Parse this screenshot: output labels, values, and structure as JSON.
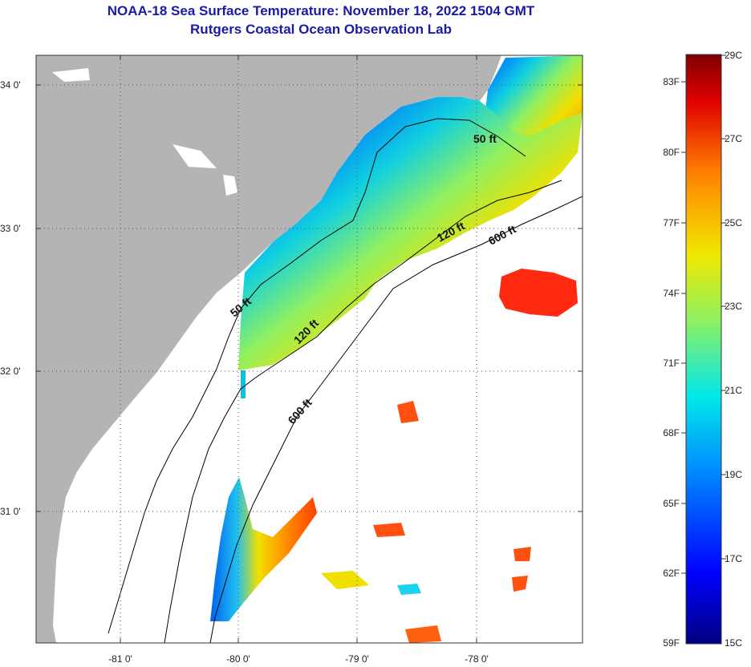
{
  "title": "NOAA-18 Sea Surface Temperature:  November 18, 2022 1504 GMT",
  "subtitle": "Rutgers Coastal Ocean Observation Lab",
  "lat_labels": [
    "34 0'",
    "33 0'",
    "32 0'",
    "31 0'"
  ],
  "lon_labels": [
    "-81 0'",
    "-80 0'",
    "-79 0'",
    "-78 0'"
  ],
  "contour_labels": {
    "c50_north": "50 ft",
    "c50_south": "50 ft",
    "c120_north": "120 ft",
    "c120_south": "120 ft",
    "c600_north": "600 ft",
    "c600_south": "600 ft"
  },
  "colorbar": {
    "f_labels": [
      "83F",
      "80F",
      "77F",
      "74F",
      "71F",
      "68F",
      "65F",
      "62F",
      "59F"
    ],
    "c_labels": [
      "29C",
      "27C",
      "25C",
      "23C",
      "21C",
      "19C",
      "17C",
      "15C"
    ]
  },
  "colors": {
    "land": "#b4b4b4",
    "title": "#1a1aa6",
    "sst_cold": "#0000a0",
    "sst_warm": "#e00000"
  }
}
